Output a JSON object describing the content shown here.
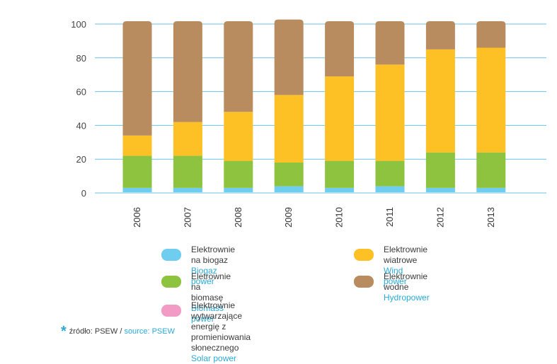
{
  "chart_data": {
    "type": "stacked-bar",
    "categories": [
      "2006",
      "2007",
      "2008",
      "2009",
      "2010",
      "2011",
      "2012",
      "2013"
    ],
    "ylim": [
      0,
      100
    ],
    "yticks": [
      0,
      20,
      40,
      60,
      80,
      100
    ],
    "grid": true,
    "series": [
      {
        "key": "biogas",
        "name": "Elektrownie na biogaz",
        "name_en": "Biogaz power",
        "color": "#6fcdf0",
        "values": [
          3,
          3,
          3,
          4,
          3,
          4,
          3,
          3
        ]
      },
      {
        "key": "biomass",
        "name": "Eletrownie na biomasę",
        "name_en": "Biomass power",
        "color": "#8dc33f",
        "values": [
          19,
          19,
          16,
          14,
          16,
          15,
          21,
          21
        ]
      },
      {
        "key": "wind",
        "name": "Elektrownie wiatrowe",
        "name_en": "Wind power",
        "color": "#fdc125",
        "values": [
          12,
          20,
          29,
          40,
          50,
          57,
          61,
          62
        ]
      },
      {
        "key": "hydro",
        "name": "Elektrownie wodne",
        "name_en": "Hydropower",
        "color": "#b88c5f",
        "values": [
          66,
          58,
          52,
          43,
          31,
          24,
          15,
          14
        ]
      },
      {
        "key": "solar",
        "name": "Elektrownie wytwarzające energię z promieniowania słonecznego",
        "name_en": "Solar power",
        "color": "#f29bc4",
        "values": [
          0,
          0,
          0,
          0,
          0,
          0,
          0,
          0
        ]
      }
    ]
  },
  "legend": {
    "biogas": {
      "pl": "Elektrownie na biogaz",
      "en": "Biogaz power",
      "color": "#6fcdf0"
    },
    "biomass": {
      "pl": "Eletrownie na biomasę",
      "en": "Biomass power",
      "color": "#8dc33f"
    },
    "solar": {
      "pl": "Elektrownie wytwarzające energię z promieniowania słonecznego",
      "en": "Solar power",
      "color": "#f29bc4"
    },
    "wind": {
      "pl": "Elektrownie wiatrowe",
      "en": "Wind power",
      "color": "#fdc125"
    },
    "hydro": {
      "pl": "Elektrownie wodne",
      "en": "Hydropower",
      "color": "#b88c5f"
    }
  },
  "source": {
    "pl": "źródło: PSEW",
    "separator": " / ",
    "en": "source: PSEW"
  }
}
